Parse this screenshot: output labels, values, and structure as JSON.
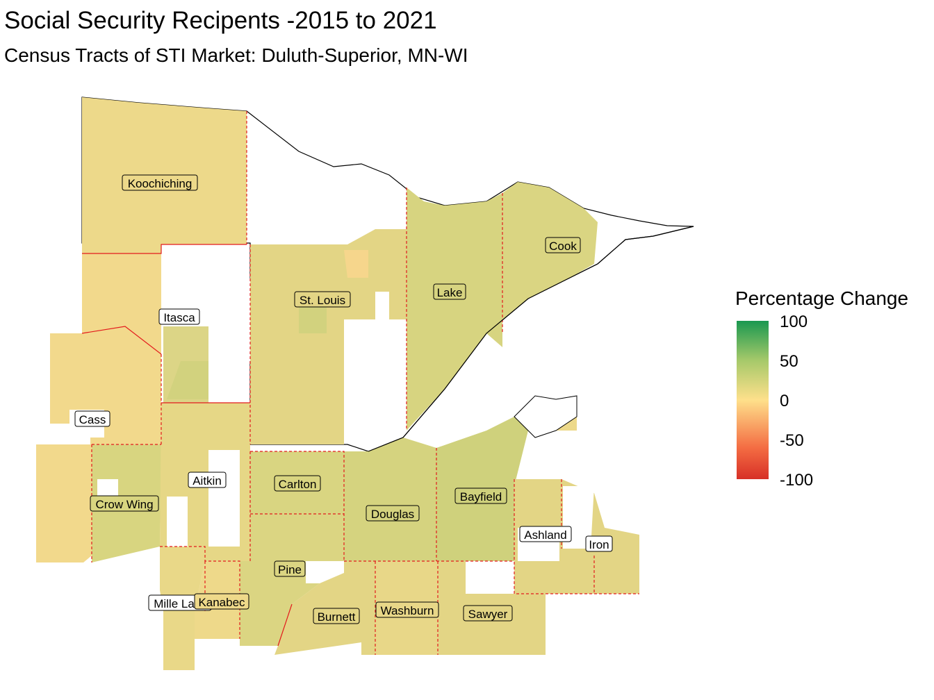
{
  "title": "Social Security Recipents -2015 to 2021",
  "subtitle": "Census Tracts of STI Market: Duluth-Superior, MN-WI",
  "legend": {
    "title": "Percentage Change",
    "ticks": [
      "100",
      "50",
      "0",
      "-50",
      "-100"
    ],
    "colors": {
      "high": "#1a9850",
      "mid_high": "#a6c96a",
      "zero": "#fee08b",
      "mid_low": "#f46d43",
      "low": "#d73027"
    }
  },
  "colors": {
    "county_border": "#e31a1c",
    "outline": "#000000",
    "fill_tan": "#edd98a",
    "fill_light_olive": "#dcd586",
    "fill_olive": "#d2d27e",
    "fill_orange": "#f6d68c"
  },
  "counties": [
    {
      "name": "Koochiching"
    },
    {
      "name": "St. Louis"
    },
    {
      "name": "Itasca"
    },
    {
      "name": "Lake"
    },
    {
      "name": "Cook"
    },
    {
      "name": "Cass"
    },
    {
      "name": "Aitkin"
    },
    {
      "name": "Carlton"
    },
    {
      "name": "Crow Wing"
    },
    {
      "name": "Douglas"
    },
    {
      "name": "Bayfield"
    },
    {
      "name": "Ashland"
    },
    {
      "name": "Iron"
    },
    {
      "name": "Pine"
    },
    {
      "name": "Mille Lacs"
    },
    {
      "name": "Kanabec"
    },
    {
      "name": "Burnett"
    },
    {
      "name": "Washburn"
    },
    {
      "name": "Sawyer"
    }
  ]
}
